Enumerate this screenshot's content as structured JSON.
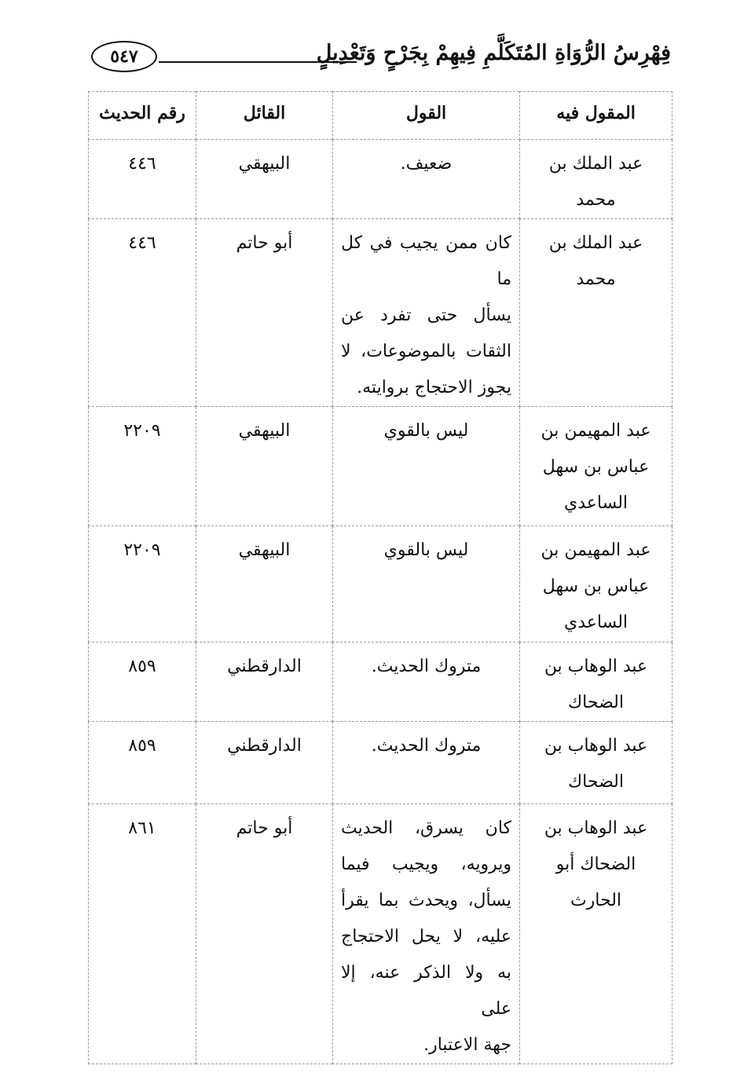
{
  "header": {
    "title": "فِهْرِسُ الرُّوَاةِ المُتَكَلَّمِ فِيهِمْ بِجَرْحٍ وَتَعْدِيلٍ",
    "page_number": "٥٤٧"
  },
  "table": {
    "columns": [
      "المقول فيه",
      "القول",
      "القائل",
      "رقم الحديث"
    ],
    "rows": [
      {
        "subject": [
          "عبد الملك بن محمد"
        ],
        "saying": [
          "ضعيف."
        ],
        "sayer": "البيهقي",
        "hadith_no": "٤٤٦"
      },
      {
        "subject": [
          "عبد الملك بن محمد"
        ],
        "saying": [
          "كان ممن يجيب في كل ما",
          "يسأل حتى تفرد عن",
          "الثقات بالموضوعات، لا",
          "يجوز الاحتجاج بروايته."
        ],
        "sayer": "أبو حاتم",
        "hadith_no": "٤٤٦"
      },
      {
        "subject": [
          "عبد المهيمن بن",
          "عباس بن سهل",
          "الساعدي"
        ],
        "saying": [
          "ليس بالقوي"
        ],
        "sayer": "البيهقي",
        "hadith_no": "٢٢٠٩"
      },
      {
        "subject": [
          "عبد المهيمن بن",
          "عباس بن سهل",
          "الساعدي"
        ],
        "saying": [
          "ليس بالقوي"
        ],
        "sayer": "البيهقي",
        "hadith_no": "٢٢٠٩"
      },
      {
        "subject": [
          "عبد الوهاب بن",
          "الضحاك"
        ],
        "saying": [
          "متروك الحديث."
        ],
        "sayer": "الدارقطني",
        "hadith_no": "٨٥٩"
      },
      {
        "subject": [
          "عبد الوهاب بن",
          "الضحاك"
        ],
        "saying": [
          "متروك الحديث."
        ],
        "sayer": "الدارقطني",
        "hadith_no": "٨٥٩"
      },
      {
        "subject": [
          "عبد الوهاب بن",
          "الضحاك أبو",
          "الحارث"
        ],
        "saying": [
          "كان يسرق، الحديث",
          "ويرويه، ويجيب فيما",
          "يسأل، ويحدث بما يقرأ",
          "عليه، لا يحل الاحتجاج",
          "به ولا الذكر عنه، إلا على",
          "جهة الاعتبار."
        ],
        "sayer": "أبو حاتم",
        "hadith_no": "٨٦١"
      }
    ]
  }
}
